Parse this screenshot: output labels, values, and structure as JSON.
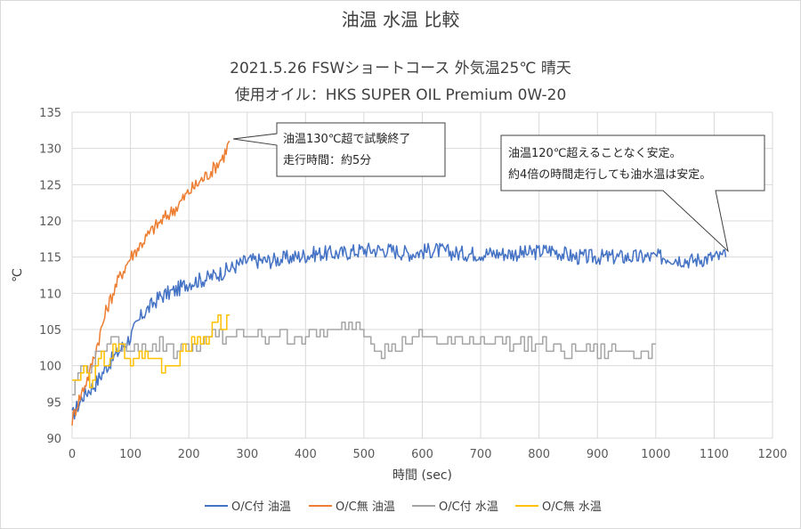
{
  "chart_data": {
    "type": "line",
    "title": "油温 水温 比較",
    "subtitle_lines": [
      "2021.5.26 FSWショートコース 外気温25℃ 晴天",
      "使用オイル：HKS SUPER OIL Premium 0W-20"
    ],
    "xlabel": "時間 (sec)",
    "ylabel": "℃",
    "xlim": [
      0,
      1200
    ],
    "ylim": [
      90,
      135
    ],
    "x_ticks": [
      "0",
      "100",
      "200",
      "300",
      "400",
      "500",
      "600",
      "700",
      "800",
      "900",
      "1000",
      "1100",
      "1200"
    ],
    "y_ticks": [
      "90",
      "95",
      "100",
      "105",
      "110",
      "115",
      "120",
      "125",
      "130",
      "135"
    ],
    "grid": true,
    "legend_position": "bottom",
    "series": [
      {
        "name": "O/C付 油温",
        "color": "#4472c4",
        "x": [
          0,
          20,
          40,
          60,
          80,
          100,
          120,
          150,
          180,
          200,
          230,
          260,
          300,
          340,
          380,
          420,
          460,
          500,
          540,
          580,
          620,
          660,
          700,
          740,
          780,
          820,
          860,
          900,
          940,
          980,
          1020,
          1060,
          1100,
          1120
        ],
        "y": [
          93,
          96,
          97.5,
          100,
          102,
          104,
          107,
          109.5,
          110.5,
          111.5,
          112,
          113,
          114.5,
          114.5,
          115,
          115.5,
          115.5,
          116,
          116,
          115.5,
          116,
          115.5,
          115.5,
          115.5,
          115.5,
          116,
          115,
          115,
          115,
          115,
          115,
          114.5,
          115,
          115
        ]
      },
      {
        "name": "O/C無 油温",
        "color": "#ed7d31",
        "x": [
          0,
          10,
          20,
          30,
          40,
          50,
          60,
          80,
          100,
          120,
          140,
          160,
          180,
          200,
          220,
          240,
          260,
          270
        ],
        "y": [
          92.5,
          95,
          97,
          99,
          102,
          105,
          108,
          112,
          115,
          117,
          119,
          120.5,
          122,
          124,
          125.5,
          127,
          129,
          131
        ]
      },
      {
        "name": "O/C付 水温",
        "color": "#a5a5a5",
        "x": [
          0,
          10,
          20,
          40,
          60,
          80,
          100,
          120,
          150,
          180,
          200,
          220,
          240,
          270,
          300,
          350,
          400,
          450,
          480,
          500,
          530,
          560,
          600,
          650,
          700,
          750,
          800,
          850,
          900,
          950,
          1000
        ],
        "y": [
          96,
          99,
          100,
          101,
          103,
          103,
          102,
          103,
          103,
          102,
          103,
          103,
          104,
          104,
          104,
          104,
          104,
          104.5,
          106,
          105,
          102,
          103,
          104,
          103,
          104,
          103,
          103,
          102,
          102,
          102,
          102
        ]
      },
      {
        "name": "O/C無 水温",
        "color": "#ffc000",
        "x": [
          0,
          10,
          20,
          30,
          40,
          50,
          60,
          70,
          80,
          90,
          100,
          110,
          120,
          130,
          140,
          160,
          180,
          190,
          200,
          210,
          220,
          230,
          240,
          250,
          260,
          270
        ],
        "y": [
          97,
          98,
          99,
          98,
          99,
          101,
          100,
          102,
          103,
          101,
          100,
          101,
          102,
          101,
          100,
          100,
          100,
          102,
          103,
          104,
          104,
          104,
          105,
          106,
          106,
          108
        ]
      }
    ],
    "annotations": [
      {
        "lines": [
          "油温130℃超で試験終了",
          "走行時間：約5分"
        ]
      },
      {
        "lines": [
          "油温120℃超えることなく安定。",
          "約4倍の時間走行しても油水温は安定。"
        ]
      }
    ]
  }
}
